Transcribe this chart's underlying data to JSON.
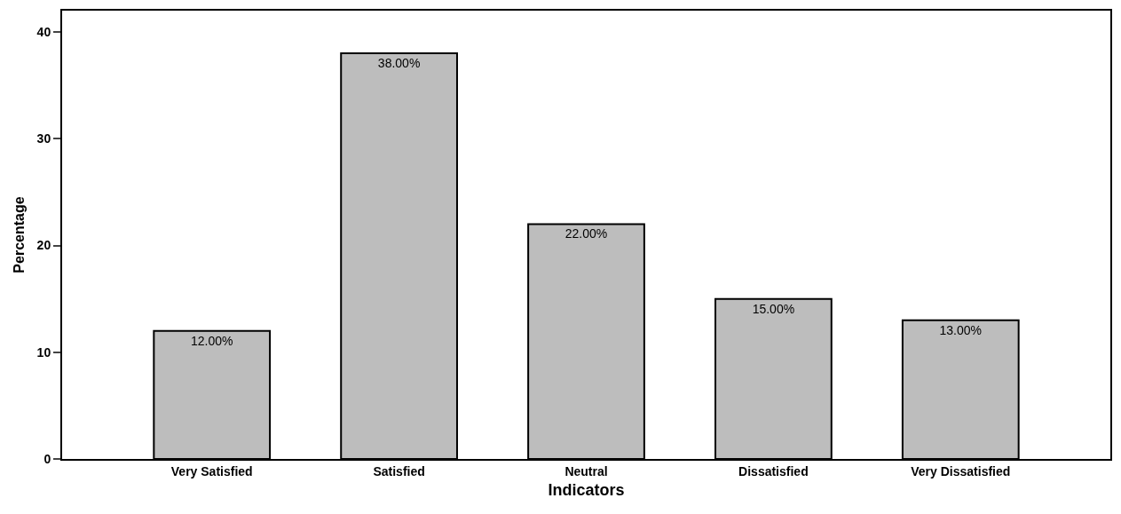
{
  "chart_data": {
    "type": "bar",
    "xlabel": "Indicators",
    "ylabel": "Percentage",
    "categories": [
      "Very Satisfied",
      "Satisfied",
      "Neutral",
      "Dissatisfied",
      "Very Dissatisfied"
    ],
    "values": [
      12,
      38,
      22,
      15,
      13
    ],
    "value_labels": [
      "12.00%",
      "38.00%",
      "22.00%",
      "15.00%",
      "13.00%"
    ],
    "color": "#bdbdbd",
    "ylim": [
      0,
      42
    ],
    "yticks": [
      0,
      10,
      20,
      30,
      40
    ],
    "grid": false
  }
}
